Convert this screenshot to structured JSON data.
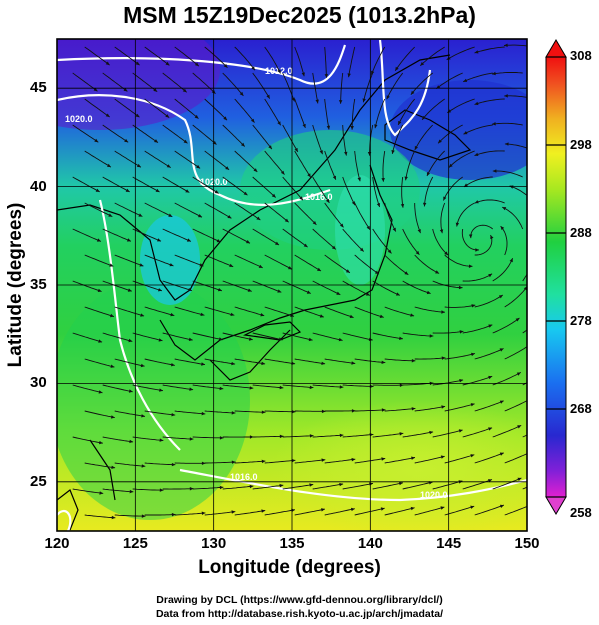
{
  "title": "MSM 15Z19Dec2025 (1013.2hPa)",
  "xlabel": "Longitude (degrees)",
  "ylabel": "Latitude  (degrees)",
  "x_ticks": [
    "120",
    "125",
    "130",
    "135",
    "140",
    "145",
    "150"
  ],
  "y_ticks": [
    "25",
    "30",
    "35",
    "40",
    "45"
  ],
  "colorbar_ticks": [
    "308",
    "298",
    "288",
    "278",
    "268",
    "258"
  ],
  "isobar_labels": [
    "1020.0",
    "1012.0",
    "1020.0",
    "1016.0",
    "1016.0",
    "1020.0"
  ],
  "credit_line1": "Drawing by DCL (https://www.gfd-dennou.org/library/dcl/)",
  "credit_line2": "Data from http://database.rish.kyoto-u.ac.jp/arch/jmadata/",
  "colors": {
    "cold": "#2b18d0",
    "cool": "#1aa0f0",
    "mild": "#22d060",
    "warm": "#c8f030",
    "hot": "#f0e020"
  },
  "map_data": {
    "lon_range": [
      120,
      150
    ],
    "lat_range": [
      22.5,
      47.5
    ],
    "colorbar_range": [
      258,
      308
    ],
    "grid": true
  }
}
